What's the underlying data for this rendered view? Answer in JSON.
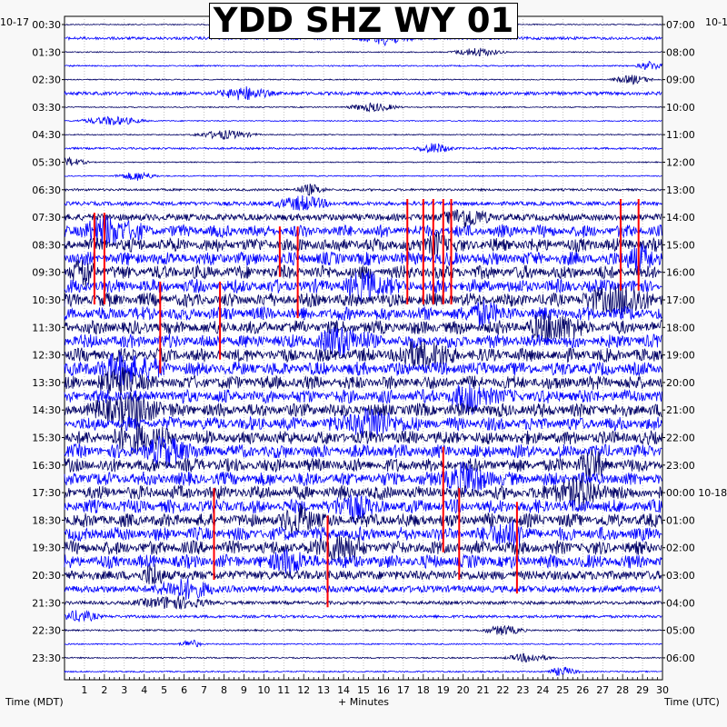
{
  "title": "YDD SHZ WY 01",
  "date_left": "10-17",
  "date_right": "10-1",
  "footer": {
    "left_axis_label": "Time (MDT)",
    "x_axis_label": "+ Minutes",
    "right_axis_label": "Time (UTC)"
  },
  "chart_data": {
    "type": "line",
    "title": "YDD SHZ WY 01",
    "xlabel": "+ Minutes",
    "ylabel_left": "Time (MDT)",
    "ylabel_right": "Time (UTC)",
    "xlim": [
      0,
      30
    ],
    "x_ticks": [
      "1",
      "2",
      "3",
      "4",
      "5",
      "6",
      "7",
      "8",
      "9",
      "10",
      "11",
      "12",
      "13",
      "14",
      "15",
      "16",
      "17",
      "18",
      "19",
      "20",
      "21",
      "22",
      "23",
      "24",
      "25",
      "26",
      "27",
      "28",
      "29",
      "30"
    ],
    "left_tick_labels": [
      "00:30",
      "01:30",
      "02:30",
      "03:30",
      "04:30",
      "05:30",
      "06:30",
      "07:30",
      "08:30",
      "09:30",
      "10:30",
      "11:30",
      "12:30",
      "13:30",
      "14:30",
      "15:30",
      "16:30",
      "17:30",
      "18:30",
      "19:30",
      "20:30",
      "21:30",
      "22:30",
      "23:30"
    ],
    "right_tick_labels": [
      "07:00",
      "08:00",
      "09:00",
      "10:00",
      "11:00",
      "12:00",
      "13:00",
      "14:00",
      "15:00",
      "16:00",
      "17:00",
      "18:00",
      "19:00",
      "20:00",
      "21:00",
      "22:00",
      "23:00",
      "00:00 10-18",
      "01:00",
      "02:00",
      "03:00",
      "04:00",
      "05:00",
      "06:00"
    ],
    "trace_rows": 48,
    "trace_minutes_per_row": 30,
    "trace_colors": [
      "#000066",
      "#0000ff"
    ],
    "clip_color": "#ff0000",
    "grid": true,
    "row_amplitude_level": [
      0.1,
      0.25,
      0.1,
      0.12,
      0.1,
      0.3,
      0.1,
      0.1,
      0.1,
      0.18,
      0.1,
      0.1,
      0.2,
      0.35,
      0.6,
      0.9,
      1.0,
      1.0,
      1.0,
      1.0,
      1.0,
      1.0,
      1.0,
      1.0,
      1.0,
      1.0,
      1.0,
      1.0,
      1.0,
      1.0,
      1.0,
      1.0,
      1.0,
      1.0,
      1.0,
      1.0,
      1.0,
      1.0,
      1.0,
      1.0,
      0.8,
      0.6,
      0.3,
      0.25,
      0.15,
      0.12,
      0.12,
      0.12
    ],
    "clipped_events": [
      {
        "minute": 1.5,
        "from_row": 14,
        "to_row": 20
      },
      {
        "minute": 2.0,
        "from_row": 14,
        "to_row": 20
      },
      {
        "minute": 4.8,
        "from_row": 19,
        "to_row": 25
      },
      {
        "minute": 7.8,
        "from_row": 19,
        "to_row": 24
      },
      {
        "minute": 10.8,
        "from_row": 15,
        "to_row": 18
      },
      {
        "minute": 11.7,
        "from_row": 15,
        "to_row": 21
      },
      {
        "minute": 17.2,
        "from_row": 13,
        "to_row": 20
      },
      {
        "minute": 18.0,
        "from_row": 13,
        "to_row": 20
      },
      {
        "minute": 18.5,
        "from_row": 13,
        "to_row": 20
      },
      {
        "minute": 19.0,
        "from_row": 13,
        "to_row": 20
      },
      {
        "minute": 19.4,
        "from_row": 13,
        "to_row": 20
      },
      {
        "minute": 19.0,
        "from_row": 31,
        "to_row": 38
      },
      {
        "minute": 19.8,
        "from_row": 34,
        "to_row": 40
      },
      {
        "minute": 7.5,
        "from_row": 34,
        "to_row": 40
      },
      {
        "minute": 13.2,
        "from_row": 36,
        "to_row": 42
      },
      {
        "minute": 22.7,
        "from_row": 35,
        "to_row": 41
      },
      {
        "minute": 27.9,
        "from_row": 13,
        "to_row": 19
      },
      {
        "minute": 28.8,
        "from_row": 13,
        "to_row": 19
      }
    ]
  }
}
